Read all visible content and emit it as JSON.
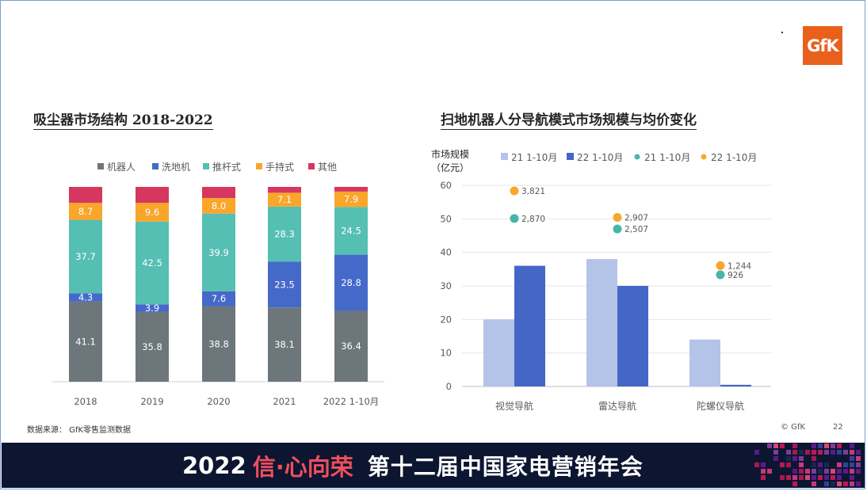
{
  "brand": {
    "logo_text": "GfK",
    "copyright": "© GfK",
    "page_number": "22"
  },
  "footer": {
    "source": "数据来源：  GfK零售监测数据"
  },
  "banner": {
    "year": "2022",
    "slogan": "信·心向荣",
    "conference": "第十二届中国家电营销年会"
  },
  "colors": {
    "robot": "#6d767a",
    "washer": "#4569c9",
    "stick": "#55bfb3",
    "handheld": "#f9a62b",
    "other": "#d6375f",
    "bar21": "#b4c3e8",
    "bar22": "#4466c5",
    "dot21": "#45b6a8",
    "dot22": "#f9a62b"
  },
  "chart_data": [
    {
      "type": "bar",
      "stacked": true,
      "title": "吸尘器市场结构 2018-2022",
      "categories": [
        "2018",
        "2019",
        "2020",
        "2021",
        "2022 1-10月"
      ],
      "series": [
        {
          "name": "机器人",
          "values": [
            41.1,
            35.8,
            38.8,
            38.1,
            36.4
          ]
        },
        {
          "name": "洗地机",
          "values": [
            4.3,
            3.9,
            7.6,
            23.5,
            28.8
          ]
        },
        {
          "name": "推杆式",
          "values": [
            37.7,
            42.5,
            39.9,
            28.3,
            24.5
          ]
        },
        {
          "name": "手持式",
          "values": [
            8.7,
            9.6,
            8.0,
            7.1,
            7.9
          ]
        },
        {
          "name": "其他",
          "values": [
            8.2,
            8.2,
            5.7,
            3.0,
            2.4
          ]
        }
      ],
      "show_labels": [
        true,
        true,
        true,
        true,
        false
      ],
      "ylim": [
        0,
        100
      ],
      "legend_position": "top",
      "grid": false
    },
    {
      "type": "bar",
      "title": "扫地机器人分导航模式市场规模与均价变化",
      "categories": [
        "视觉导航",
        "雷达导航",
        "陀螺仪导航"
      ],
      "ylabel_line1": "市场规模",
      "ylabel_line2": "（亿元）",
      "ylim": [
        0,
        60
      ],
      "yticks": [
        0,
        10,
        20,
        30,
        40,
        50,
        60
      ],
      "grid": true,
      "legend_position": "top",
      "series": [
        {
          "name": "21 1-10月",
          "kind": "bar",
          "values": [
            20,
            38,
            14
          ]
        },
        {
          "name": "22 1-10月",
          "kind": "bar",
          "values": [
            36,
            30,
            0.5
          ]
        }
      ],
      "price_series": [
        {
          "name": "21 1-10月",
          "kind": "dot",
          "values": [
            2870,
            2507,
            926
          ],
          "labels": [
            "2,870",
            "2,507",
            "926"
          ]
        },
        {
          "name": "22 1-10月",
          "kind": "dot",
          "values": [
            3821,
            2907,
            1244
          ],
          "labels": [
            "3,821",
            "2,907",
            "1,244"
          ]
        }
      ]
    }
  ]
}
